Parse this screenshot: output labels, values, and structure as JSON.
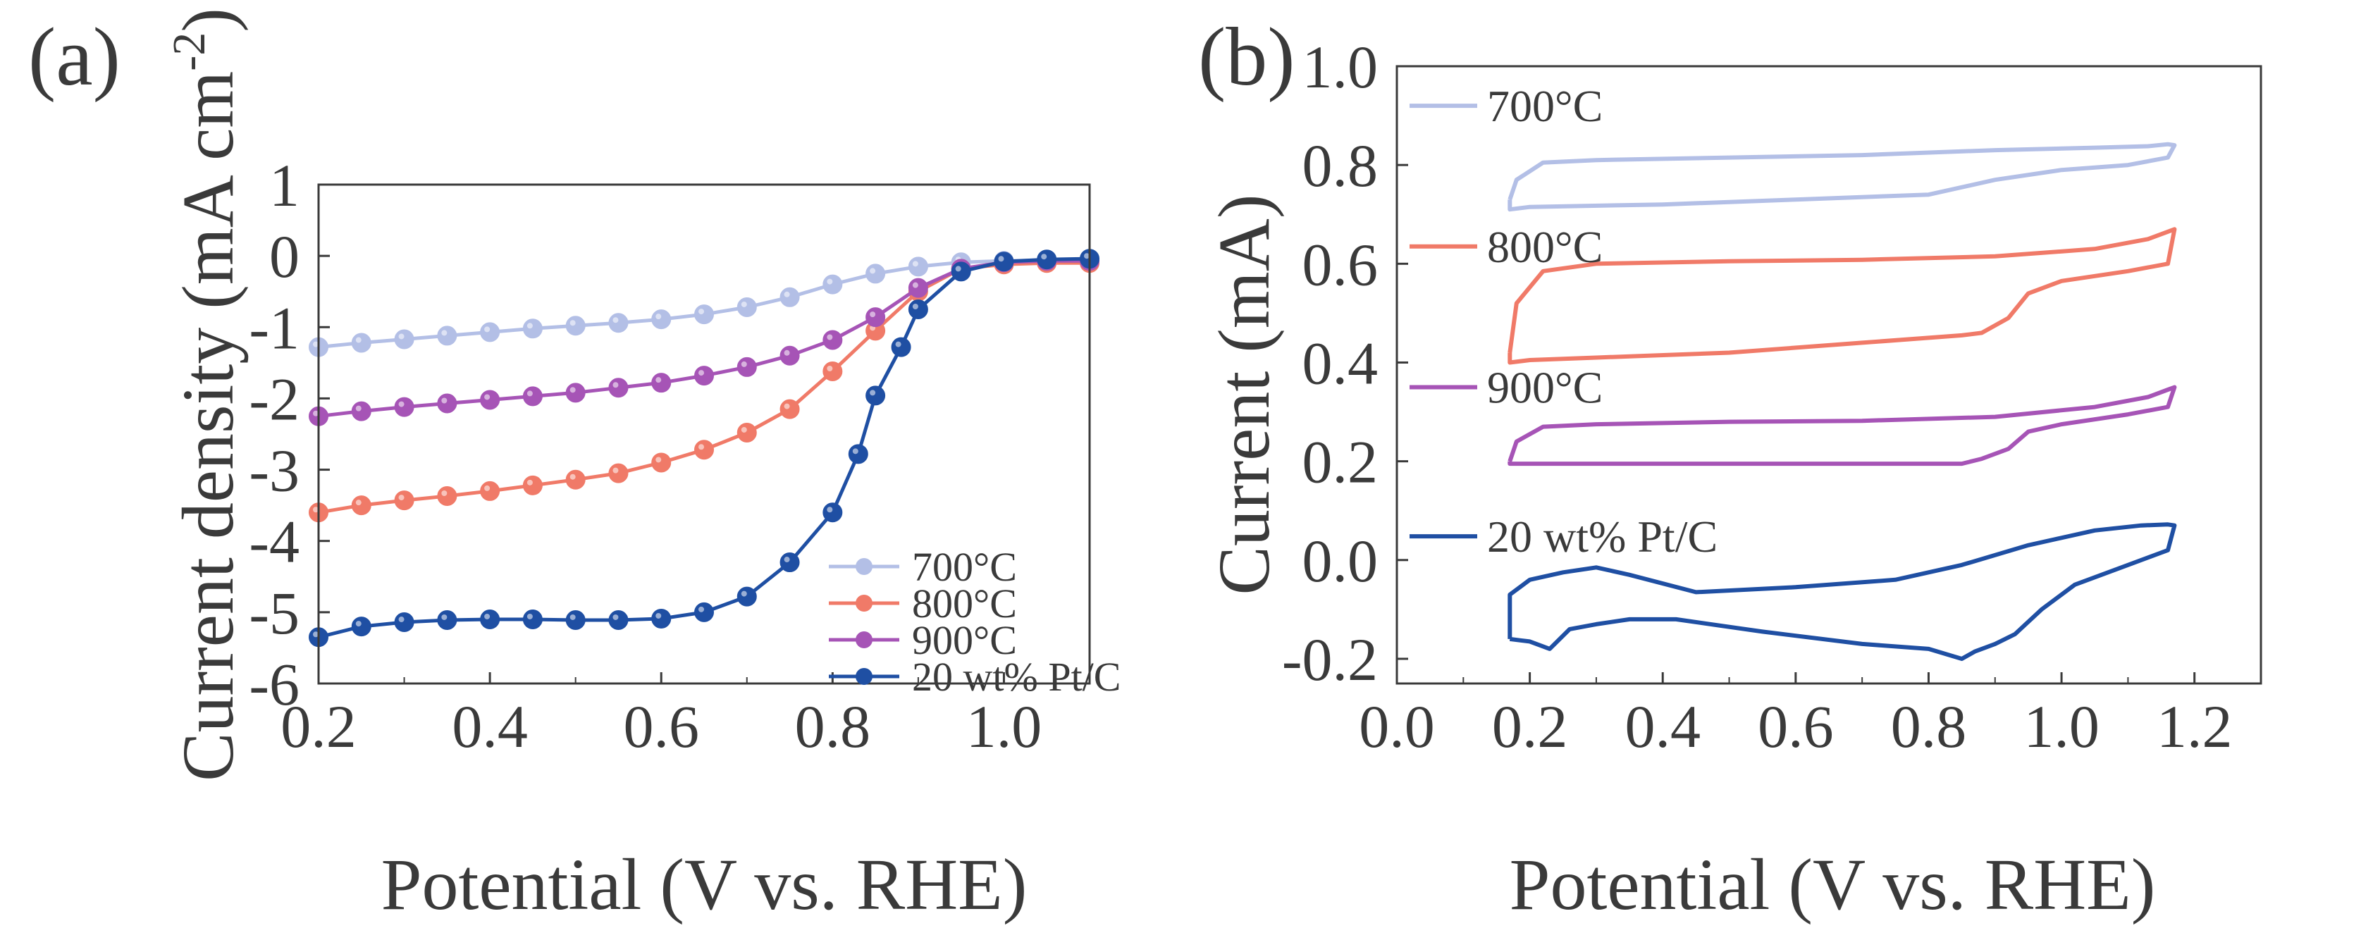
{
  "figure": {
    "panel_a_label": "(a)",
    "panel_b_label": "(b)"
  },
  "chart_data": [
    {
      "panel": "(a)",
      "type": "line",
      "xlabel": "Potential (V vs. RHE)",
      "ylabel_main": "Current density (mA cm",
      "ylabel_sup": "-2",
      "ylabel_close": ")",
      "xlim": [
        0.2,
        1.1
      ],
      "ylim": [
        -6,
        1
      ],
      "xticks": [
        0.2,
        0.4,
        0.6,
        0.8,
        1.0
      ],
      "xtick_labels": [
        "0.2",
        "0.4",
        "0.6",
        "0.8",
        "1.0"
      ],
      "yticks": [
        1,
        0,
        -1,
        -2,
        -3,
        -4,
        -5,
        -6
      ],
      "ytick_labels": [
        "1",
        "0",
        "-1",
        "-2",
        "-3",
        "-4",
        "-5",
        "-6"
      ],
      "legend_position": "bottom-right",
      "series": [
        {
          "name": "700°C",
          "color": "#b3bfe6",
          "x": [
            0.2,
            0.25,
            0.3,
            0.35,
            0.4,
            0.45,
            0.5,
            0.55,
            0.6,
            0.65,
            0.7,
            0.75,
            0.8,
            0.85,
            0.9,
            0.95,
            1.0,
            1.05,
            1.1
          ],
          "y": [
            -1.28,
            -1.22,
            -1.17,
            -1.12,
            -1.07,
            -1.02,
            -0.98,
            -0.94,
            -0.89,
            -0.82,
            -0.72,
            -0.58,
            -0.4,
            -0.25,
            -0.15,
            -0.09,
            -0.07,
            -0.06,
            -0.06
          ]
        },
        {
          "name": "800°C",
          "color": "#f07a68",
          "x": [
            0.2,
            0.25,
            0.3,
            0.35,
            0.4,
            0.45,
            0.5,
            0.55,
            0.6,
            0.65,
            0.7,
            0.75,
            0.8,
            0.85,
            0.9,
            0.95,
            1.0,
            1.05,
            1.1
          ],
          "y": [
            -3.6,
            -3.5,
            -3.43,
            -3.37,
            -3.3,
            -3.22,
            -3.14,
            -3.05,
            -2.9,
            -2.72,
            -2.48,
            -2.15,
            -1.62,
            -1.05,
            -0.5,
            -0.18,
            -0.12,
            -0.1,
            -0.1
          ]
        },
        {
          "name": "900°C",
          "color": "#a654b6",
          "x": [
            0.2,
            0.25,
            0.3,
            0.35,
            0.4,
            0.45,
            0.5,
            0.55,
            0.6,
            0.65,
            0.7,
            0.75,
            0.8,
            0.85,
            0.9,
            0.95,
            1.0,
            1.05,
            1.1
          ],
          "y": [
            -2.25,
            -2.18,
            -2.12,
            -2.07,
            -2.02,
            -1.97,
            -1.92,
            -1.85,
            -1.78,
            -1.68,
            -1.56,
            -1.4,
            -1.18,
            -0.86,
            -0.45,
            -0.18,
            -0.09,
            -0.07,
            -0.07
          ]
        },
        {
          "name": "20 wt% Pt/C",
          "color": "#1f4fa3",
          "x": [
            0.2,
            0.25,
            0.3,
            0.35,
            0.4,
            0.45,
            0.5,
            0.55,
            0.6,
            0.65,
            0.7,
            0.75,
            0.8,
            0.83,
            0.85,
            0.88,
            0.9,
            0.95,
            1.0,
            1.05,
            1.1
          ],
          "y": [
            -5.35,
            -5.2,
            -5.14,
            -5.11,
            -5.1,
            -5.1,
            -5.11,
            -5.11,
            -5.09,
            -5.0,
            -4.78,
            -4.3,
            -3.6,
            -2.78,
            -1.96,
            -1.28,
            -0.75,
            -0.22,
            -0.08,
            -0.05,
            -0.04
          ]
        }
      ]
    },
    {
      "panel": "(b)",
      "type": "line",
      "xlabel": "Potential (V vs. RHE)",
      "ylabel": "Current  (mA)",
      "xlim": [
        0.0,
        1.3
      ],
      "ylim": [
        -0.25,
        1.0
      ],
      "xticks": [
        0.0,
        0.2,
        0.4,
        0.6,
        0.8,
        1.0,
        1.2
      ],
      "xtick_labels": [
        "0.0",
        "0.2",
        "0.4",
        "0.6",
        "0.8",
        "1.0",
        "1.2"
      ],
      "yticks": [
        1.0,
        0.8,
        0.6,
        0.4,
        0.2,
        0.0,
        -0.2
      ],
      "ytick_labels": [
        "1.0",
        "0.8",
        "0.6",
        "0.4",
        "0.2",
        "0.0",
        "-0.2"
      ],
      "legend_position": "inline-left",
      "series": [
        {
          "name": "700°C",
          "color": "#b3bfe6",
          "x": [
            0.17,
            0.18,
            0.22,
            0.3,
            0.5,
            0.7,
            0.9,
            1.05,
            1.13,
            1.16,
            1.17,
            1.16,
            1.1,
            1.0,
            0.9,
            0.8,
            0.6,
            0.4,
            0.2,
            0.17,
            0.17
          ],
          "y": [
            0.73,
            0.77,
            0.805,
            0.81,
            0.815,
            0.82,
            0.83,
            0.835,
            0.838,
            0.842,
            0.84,
            0.815,
            0.8,
            0.79,
            0.77,
            0.74,
            0.73,
            0.72,
            0.715,
            0.71,
            0.73
          ]
        },
        {
          "name": "800°C",
          "color": "#f07a68",
          "x": [
            0.17,
            0.18,
            0.22,
            0.3,
            0.5,
            0.7,
            0.9,
            1.05,
            1.13,
            1.16,
            1.17,
            1.16,
            1.1,
            1.0,
            0.95,
            0.92,
            0.88,
            0.85,
            0.7,
            0.5,
            0.3,
            0.2,
            0.17,
            0.17
          ],
          "y": [
            0.42,
            0.52,
            0.585,
            0.6,
            0.605,
            0.608,
            0.615,
            0.63,
            0.65,
            0.665,
            0.67,
            0.6,
            0.585,
            0.565,
            0.54,
            0.49,
            0.46,
            0.455,
            0.44,
            0.42,
            0.41,
            0.405,
            0.4,
            0.42
          ]
        },
        {
          "name": "900°C",
          "color": "#a654b6",
          "x": [
            0.17,
            0.18,
            0.22,
            0.3,
            0.5,
            0.7,
            0.9,
            1.05,
            1.13,
            1.16,
            1.17,
            1.16,
            1.1,
            1.0,
            0.95,
            0.92,
            0.88,
            0.85,
            0.7,
            0.5,
            0.3,
            0.2,
            0.17,
            0.17
          ],
          "y": [
            0.2,
            0.24,
            0.27,
            0.275,
            0.28,
            0.282,
            0.29,
            0.31,
            0.33,
            0.345,
            0.35,
            0.31,
            0.295,
            0.275,
            0.26,
            0.225,
            0.205,
            0.195,
            0.195,
            0.195,
            0.195,
            0.195,
            0.195,
            0.2
          ]
        },
        {
          "name": "20 wt% Pt/C",
          "color": "#1f4fa3",
          "x": [
            0.17,
            0.17,
            0.2,
            0.25,
            0.3,
            0.35,
            0.45,
            0.6,
            0.75,
            0.85,
            0.95,
            1.05,
            1.12,
            1.16,
            1.17,
            1.16,
            1.1,
            1.02,
            0.97,
            0.93,
            0.9,
            0.87,
            0.85,
            0.8,
            0.7,
            0.55,
            0.42,
            0.35,
            0.3,
            0.26,
            0.23,
            0.2,
            0.17
          ],
          "y": [
            -0.16,
            -0.07,
            -0.04,
            -0.025,
            -0.015,
            -0.03,
            -0.065,
            -0.055,
            -0.04,
            -0.01,
            0.03,
            0.06,
            0.07,
            0.072,
            0.07,
            0.02,
            -0.01,
            -0.05,
            -0.1,
            -0.15,
            -0.17,
            -0.185,
            -0.2,
            -0.18,
            -0.17,
            -0.145,
            -0.12,
            -0.12,
            -0.13,
            -0.14,
            -0.18,
            -0.165,
            -0.16
          ]
        }
      ]
    }
  ]
}
